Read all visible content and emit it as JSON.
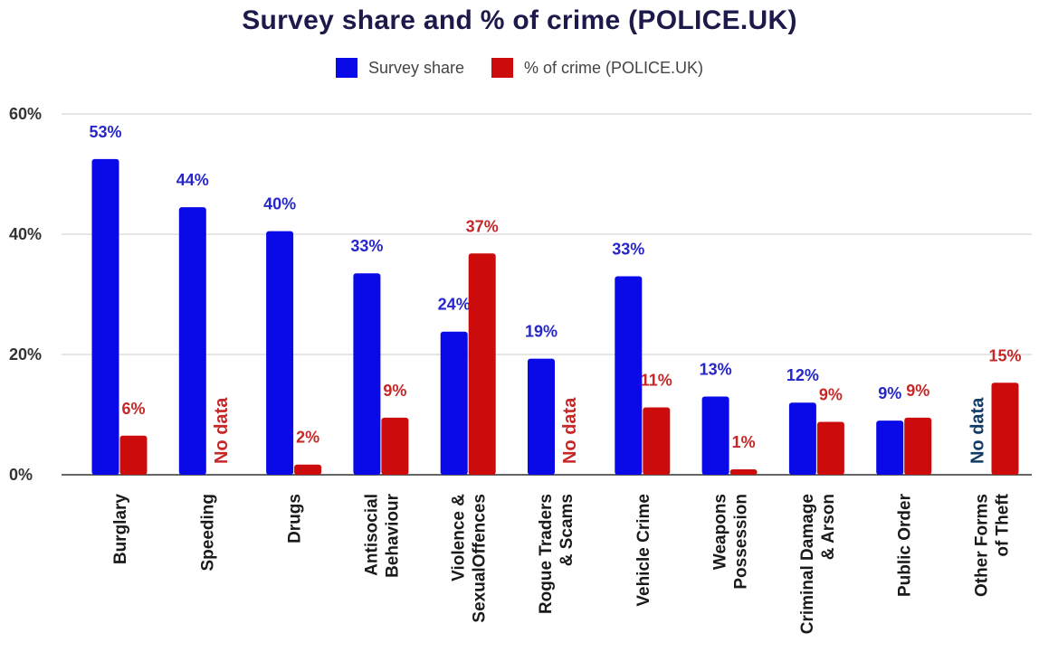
{
  "chart_data": {
    "type": "bar",
    "title": "Survey share and % of crime (POLICE.UK)",
    "xlabel": "",
    "ylabel": "",
    "ylim": [
      0,
      60
    ],
    "y_ticks": [
      "0%",
      "20%",
      "40%",
      "60%"
    ],
    "y_tick_values": [
      0,
      20,
      40,
      60
    ],
    "grid": true,
    "legend_position": "top-center",
    "categories": [
      "Burglary",
      "Speeding",
      "Drugs",
      "Antisocial Behaviour",
      "Violence & SexualOffences",
      "Rogue Traders & Scams",
      "Vehicle Crime",
      "Weapons Possession",
      "Criminal Damage & Arson",
      "Public Order",
      "Other Forms of Theft"
    ],
    "category_lines": [
      [
        "Burglary"
      ],
      [
        "Speeding"
      ],
      [
        "Drugs"
      ],
      [
        "Antisocial",
        "Behaviour"
      ],
      [
        "Violence &",
        "SexualOffences"
      ],
      [
        "Rogue Traders",
        "& Scams"
      ],
      [
        "Vehicle Crime"
      ],
      [
        "Weapons",
        "Possession"
      ],
      [
        "Criminal Damage",
        "& Arson"
      ],
      [
        "Public Order"
      ],
      [
        "Other Forms",
        "of Theft"
      ]
    ],
    "series": [
      {
        "name": "Survey share",
        "color": "#0a0ae8",
        "label_color": "#2727c9",
        "values": [
          52.5,
          44.5,
          40.5,
          33.5,
          23.8,
          19.3,
          33,
          13,
          12,
          9,
          null
        ],
        "labels": [
          "53%",
          "44%",
          "40%",
          "33%",
          "24%",
          "19%",
          "33%",
          "13%",
          "12%",
          "9%",
          "No data"
        ]
      },
      {
        "name": "% of crime (POLICE.UK)",
        "color": "#cc0c0c",
        "label_color": "#c62828",
        "values": [
          6.5,
          null,
          1.7,
          9.5,
          36.8,
          null,
          11.2,
          0.9,
          8.8,
          9.5,
          15.3
        ],
        "labels": [
          "6%",
          "No data",
          "2%",
          "9%",
          "37%",
          "No data",
          "11%",
          "1%",
          "9%",
          "9%",
          "15%"
        ]
      }
    ],
    "no_data_label_colors": [
      "#c62828",
      "#c62828",
      "#0f3b66"
    ]
  }
}
